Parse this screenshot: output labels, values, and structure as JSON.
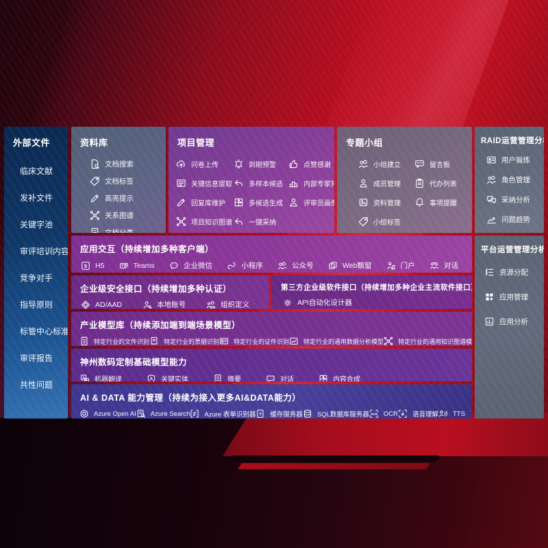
{
  "colors": {
    "accent_red": "#b90f20",
    "sidebar_blue_top": "#0a2850",
    "sidebar_blue_bottom": "#3572b4",
    "panel_purple": "#8b3f9b",
    "panel_indigo": "#3c3690",
    "panel_slate": "#5d6575"
  },
  "sidebar": {
    "title": "外部文件",
    "items": [
      {
        "label": "临床文献"
      },
      {
        "label": "发补文件"
      },
      {
        "label": "关键字池"
      },
      {
        "label": "审评培训内容"
      },
      {
        "label": "竞争对手"
      },
      {
        "label": "指导原则"
      },
      {
        "label": "标管中心标准"
      },
      {
        "label": "审评报告"
      },
      {
        "label": "共性问题"
      }
    ]
  },
  "panels": {
    "library": {
      "title": "资料库",
      "items": [
        {
          "label": "文档搜索",
          "icon": "doc-search"
        },
        {
          "label": "文档标签",
          "icon": "tag"
        },
        {
          "label": "高亮提示",
          "icon": "pen"
        },
        {
          "label": "关系图谱",
          "icon": "graph"
        },
        {
          "label": "文档分类",
          "icon": "doc-lines"
        }
      ]
    },
    "project": {
      "title": "项目管理",
      "items": [
        {
          "label": "问卷上传",
          "icon": "cloud-up"
        },
        {
          "label": "到期预警",
          "icon": "alarm"
        },
        {
          "label": "点赞感谢",
          "icon": "thumb"
        },
        {
          "label": "关键信息提取",
          "icon": "extract"
        },
        {
          "label": "多样本候选",
          "icon": "reply"
        },
        {
          "label": "内部专家排名",
          "icon": "podium"
        },
        {
          "label": "回复库维护",
          "icon": "pen"
        },
        {
          "label": "多候选生成",
          "icon": "puzzle"
        },
        {
          "label": "评审员画像",
          "icon": "person"
        },
        {
          "label": "项目知识图谱",
          "icon": "graph"
        },
        {
          "label": "一键采纳",
          "icon": "adopt"
        }
      ]
    },
    "group": {
      "title": "专题小组",
      "items": [
        {
          "label": "小组建立",
          "icon": "people"
        },
        {
          "label": "留言板",
          "icon": "bbs"
        },
        {
          "label": "成员管理",
          "icon": "person"
        },
        {
          "label": "代办列表",
          "icon": "clipboard"
        },
        {
          "label": "资料管理",
          "icon": "album"
        },
        {
          "label": "事项提醒",
          "icon": "bell"
        },
        {
          "label": "小组标签",
          "icon": "tag"
        }
      ]
    },
    "raid": {
      "title": "RAID运营管理分析",
      "items": [
        {
          "label": "用户锻炼",
          "icon": "user-card"
        },
        {
          "label": "角色管理",
          "icon": "roles"
        },
        {
          "label": "采纳分析",
          "icon": "chat-qa"
        },
        {
          "label": "问题趋势",
          "icon": "trend"
        }
      ]
    },
    "platform": {
      "title": "平台运营管理分析",
      "items": [
        {
          "label": "资源分配",
          "icon": "list-zig"
        },
        {
          "label": "应用管理",
          "icon": "grid-apps"
        },
        {
          "label": "应用分析",
          "icon": "chart-bars"
        }
      ]
    },
    "interaction": {
      "title": "应用交互（持续增加多种客户端）",
      "items": [
        {
          "label": "H5",
          "icon": "h5"
        },
        {
          "label": "Teams",
          "icon": "teams"
        },
        {
          "label": "企业微信",
          "icon": "wechat"
        },
        {
          "label": "小程序",
          "icon": "miniprogram"
        },
        {
          "label": "公众号",
          "icon": "official-account"
        },
        {
          "label": "Web飘窗",
          "icon": "web-window"
        },
        {
          "label": "门户",
          "icon": "portal"
        },
        {
          "label": "对话",
          "icon": "dialog-pair"
        }
      ]
    },
    "security": {
      "title": "企业级安全接口（持续增加多种认证）",
      "items": [
        {
          "label": "AD/AAD",
          "icon": "ad-shield"
        },
        {
          "label": "本地账号",
          "icon": "person-key"
        },
        {
          "label": "组织定义",
          "icon": "org"
        }
      ]
    },
    "thirdparty": {
      "title": "第三方企业级软件接口（持续增加多种企业主流软件接口）",
      "items": [
        {
          "label": "API自动化设计器",
          "icon": "api-gear"
        }
      ]
    },
    "models": {
      "title": "产业模型库（持续添加端到端场景模型）",
      "items": [
        {
          "label": "特定行业的文件识别",
          "icon": "doc-lines"
        },
        {
          "label": "特定行业的票据识别",
          "icon": "receipt"
        },
        {
          "label": "特定行业的证件识别",
          "icon": "idcard"
        },
        {
          "label": "特定行业的通用数据分析模型",
          "icon": "chart-img"
        },
        {
          "label": "特定行业的通用知识图谱模型",
          "icon": "graph"
        }
      ]
    },
    "base_models": {
      "title": "神州数码定制基础模型能力",
      "items": [
        {
          "label": "机器翻译",
          "icon": "translate"
        },
        {
          "label": "关键实体",
          "icon": "entity"
        },
        {
          "label": "摘要",
          "icon": "summary"
        },
        {
          "label": "对话",
          "icon": "chat"
        },
        {
          "label": "内容合成",
          "icon": "compose"
        }
      ]
    },
    "ai_data": {
      "title": "AI & DATA 能力管理（持续为接入更多AI&DATA能力）",
      "items": [
        {
          "label": "Azure Open AI",
          "icon": "openai"
        },
        {
          "label": "Azure Search",
          "icon": "azure-search"
        },
        {
          "label": "Azure 表单识别器",
          "icon": "form"
        },
        {
          "label": "缓存服务器",
          "icon": "cache"
        },
        {
          "label": "SQL数据库服务器",
          "icon": "sql"
        },
        {
          "label": "OCR",
          "icon": "ocr"
        },
        {
          "label": "语音理解",
          "icon": "speech"
        },
        {
          "label": "TTS",
          "icon": "tts"
        }
      ]
    }
  }
}
